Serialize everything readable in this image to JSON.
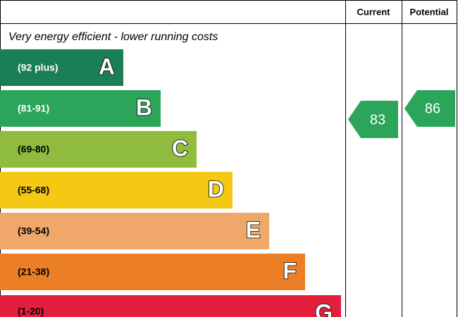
{
  "header": {
    "current": "Current",
    "potential": "Potential"
  },
  "note": "Very energy efficient - lower running costs",
  "bands": [
    {
      "range": "(92 plus)",
      "letter": "A"
    },
    {
      "range": "(81-91)",
      "letter": "B"
    },
    {
      "range": "(69-80)",
      "letter": "C"
    },
    {
      "range": "(55-68)",
      "letter": "D"
    },
    {
      "range": "(39-54)",
      "letter": "E"
    },
    {
      "range": "(21-38)",
      "letter": "F"
    },
    {
      "range": "(1-20)",
      "letter": "G"
    }
  ],
  "current": 83,
  "potential": 86
}
